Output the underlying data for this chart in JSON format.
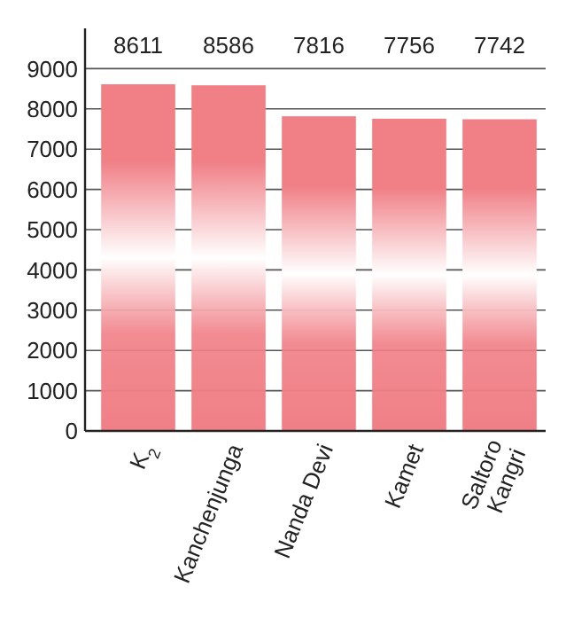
{
  "chart_data": {
    "type": "bar",
    "categories": [
      "K$_{2}$",
      "Kanchenjunga",
      "Nanda Devi",
      "Kamet",
      "Saltoro Kangri"
    ],
    "values": [
      8611,
      8586,
      7816,
      7756,
      7742
    ],
    "color": "#f07f86",
    "data_labels": true,
    "ylim": [
      0,
      10000
    ],
    "yticks": [
      0,
      1000,
      2000,
      3000,
      4000,
      5000,
      6000,
      7000,
      8000,
      9000
    ],
    "grid": "y"
  }
}
